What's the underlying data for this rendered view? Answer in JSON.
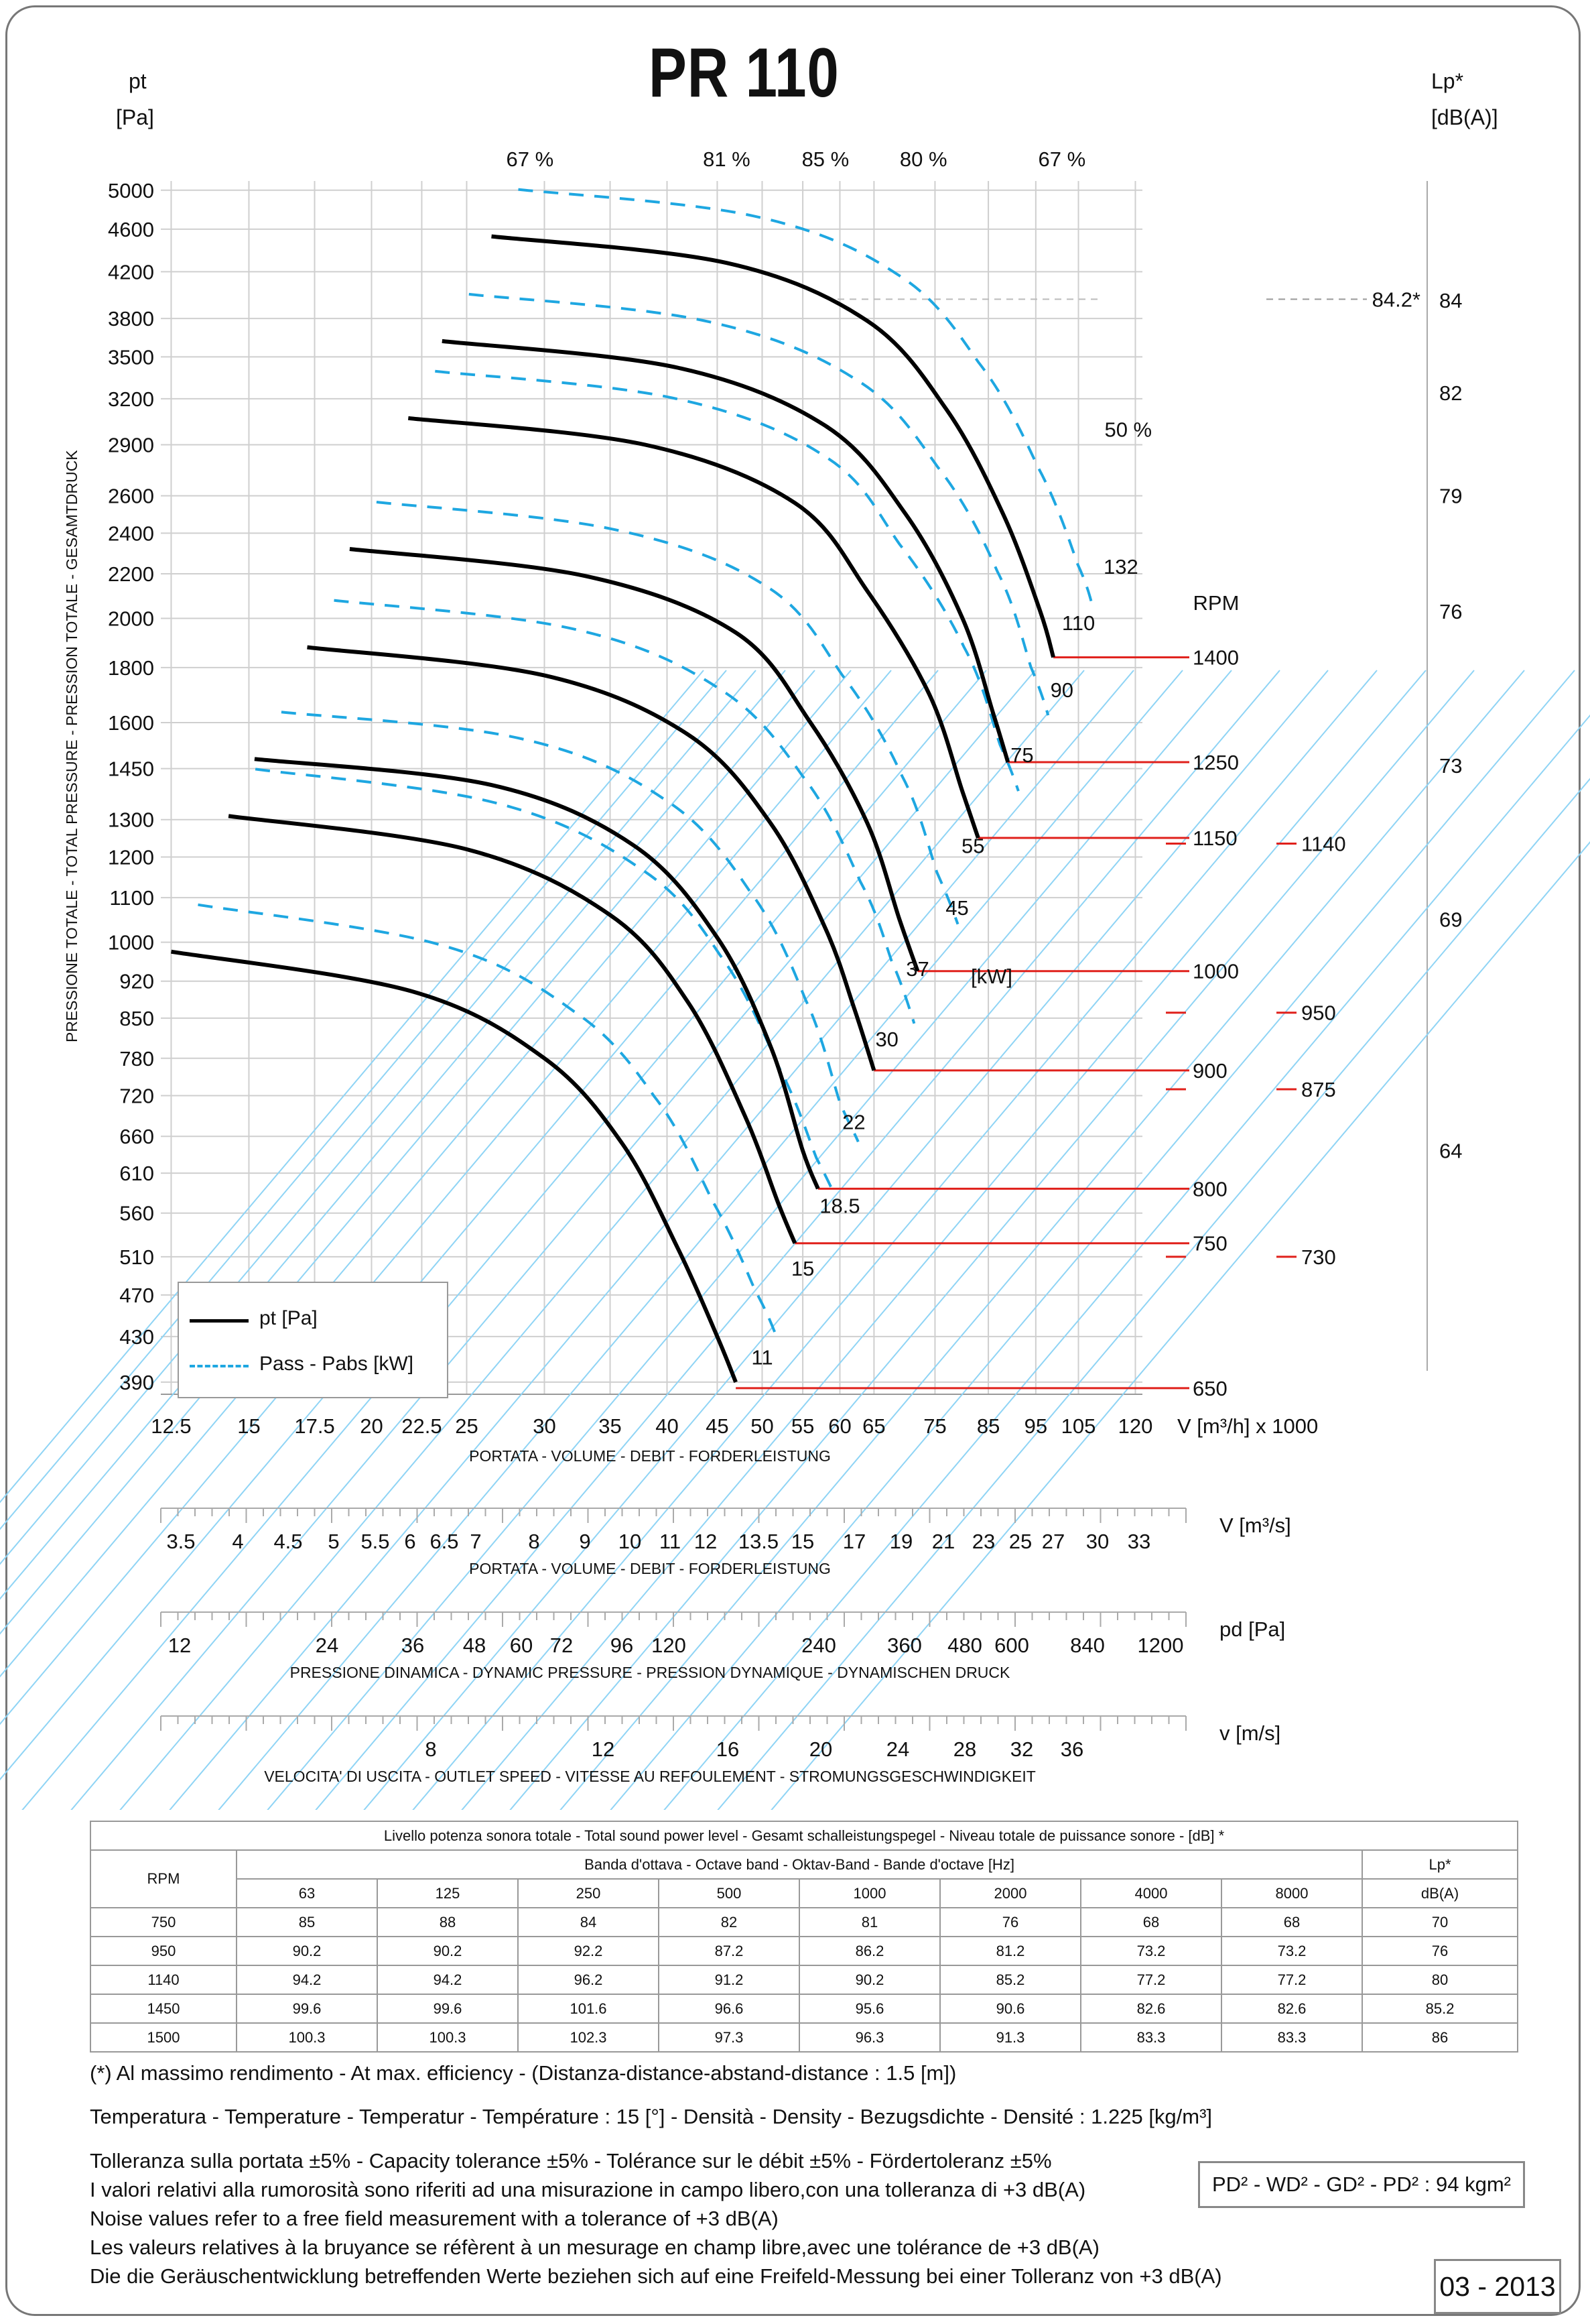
{
  "title": "PR 110",
  "y_left_unit": [
    "pt",
    "[Pa]"
  ],
  "y_right_unit": [
    "Lp*",
    "[dB(A)]"
  ],
  "y_axis_label": "PRESSIONE TOTALE - TOTAL PRESSURE - PRESSION TOTALE - GESAMTDRUCK",
  "chart_data": {
    "type": "line",
    "title": "PR 110",
    "x_scale": "log",
    "y_scale": "log",
    "xlabel": "V [m³/h] x 1000",
    "ylabel": "pt [Pa]",
    "xlim": [
      12.2,
      122
    ],
    "ylim": [
      380,
      5100
    ],
    "x_ticks": [
      "12.5",
      "15",
      "17.5",
      "20",
      "22.5",
      "25",
      "30",
      "35",
      "40",
      "45",
      "50",
      "55",
      "60",
      "65",
      "75",
      "85",
      "95",
      "105",
      "120"
    ],
    "y_ticks": [
      "390",
      "430",
      "470",
      "510",
      "560",
      "610",
      "660",
      "720",
      "780",
      "850",
      "920",
      "1000",
      "1100",
      "1200",
      "1300",
      "1450",
      "1600",
      "1800",
      "2000",
      "2200",
      "2400",
      "2600",
      "2900",
      "3200",
      "3500",
      "3800",
      "4200",
      "4600",
      "5000"
    ],
    "lp_ticks": [
      "84",
      "82",
      "79",
      "76",
      "73",
      "69",
      "64"
    ],
    "lp_tick_pt": [
      3950,
      3240,
      2600,
      2030,
      1460,
      1050,
      640
    ],
    "lp_marker": {
      "label": "84.2*",
      "pt": 3960
    },
    "legend": {
      "position": "bottom-left",
      "items": [
        "pt [Pa]",
        "Pass - Pabs [kW]"
      ]
    },
    "rpm_header": "RPM",
    "series": [
      {
        "rpm": "650",
        "values": [
          [
            12.5,
            980
          ],
          [
            22,
            900
          ],
          [
            30,
            780
          ],
          [
            36,
            650
          ],
          [
            41,
            520
          ],
          [
            45,
            430
          ],
          [
            47,
            390
          ]
        ]
      },
      {
        "rpm": "750",
        "values": [
          [
            14.3,
            1310
          ],
          [
            25,
            1220
          ],
          [
            35,
            1060
          ],
          [
            42,
            880
          ],
          [
            48,
            690
          ],
          [
            52,
            570
          ],
          [
            54,
            525
          ]
        ]
      },
      {
        "rpm": "800",
        "values": [
          [
            15.2,
            1480
          ],
          [
            26.5,
            1400
          ],
          [
            37,
            1230
          ],
          [
            45,
            1010
          ],
          [
            51,
            800
          ],
          [
            55,
            640
          ],
          [
            57,
            590
          ]
        ]
      },
      {
        "rpm": "900",
        "values": [
          [
            17.2,
            1880
          ],
          [
            30,
            1770
          ],
          [
            42,
            1560
          ],
          [
            51,
            1290
          ],
          [
            58,
            1030
          ],
          [
            62,
            870
          ],
          [
            65,
            760
          ]
        ]
      },
      {
        "rpm": "1000",
        "values": [
          [
            19,
            2320
          ],
          [
            33,
            2190
          ],
          [
            47,
            1940
          ],
          [
            56,
            1600
          ],
          [
            64,
            1290
          ],
          [
            69,
            1050
          ],
          [
            72,
            940
          ]
        ]
      },
      {
        "rpm": "1150",
        "values": [
          [
            21.8,
            3070
          ],
          [
            38,
            2900
          ],
          [
            54,
            2560
          ],
          [
            64,
            2120
          ],
          [
            74,
            1700
          ],
          [
            80,
            1380
          ],
          [
            83,
            1250
          ]
        ]
      },
      {
        "rpm": "1250",
        "values": [
          [
            23.6,
            3620
          ],
          [
            41,
            3420
          ],
          [
            58,
            3020
          ],
          [
            70,
            2500
          ],
          [
            80,
            2000
          ],
          [
            86,
            1630
          ],
          [
            89,
            1470
          ]
        ]
      },
      {
        "rpm": "1400",
        "values": [
          [
            26.5,
            4530
          ],
          [
            46,
            4280
          ],
          [
            64,
            3780
          ],
          [
            77,
            3130
          ],
          [
            88,
            2500
          ],
          [
            96,
            2030
          ],
          [
            99,
            1840
          ]
        ]
      }
    ],
    "rpm_labels": [
      {
        "label": "1400",
        "pt": 1840
      },
      {
        "label": "1250",
        "pt": 1470
      },
      {
        "label": "1150",
        "pt": 1250
      },
      {
        "label": "1000",
        "pt": 940
      },
      {
        "label": "900",
        "pt": 760
      },
      {
        "label": "800",
        "pt": 590
      },
      {
        "label": "750",
        "pt": 525
      },
      {
        "label": "650",
        "pt": 385
      }
    ],
    "rpm_labels_right": [
      {
        "label": "1140",
        "pt": 1235
      },
      {
        "label": "950",
        "pt": 860
      },
      {
        "label": "875",
        "pt": 730
      },
      {
        "label": "730",
        "pt": 510
      }
    ],
    "efficiency_labels": [
      {
        "label": "67 %",
        "x": 29
      },
      {
        "label": "81 %",
        "x": 46
      },
      {
        "label": "85 %",
        "x": 58
      },
      {
        "label": "80 %",
        "x": 73
      },
      {
        "label": "67 %",
        "x": 101
      },
      {
        "label": "50 %",
        "x": 118,
        "pt": 2950
      }
    ],
    "power_labels": [
      {
        "label": "132",
        "x": 116,
        "pt": 2200
      },
      {
        "label": "110",
        "x": 105,
        "pt": 1950
      },
      {
        "label": "90",
        "x": 101,
        "pt": 1690
      },
      {
        "label": "75",
        "x": 92,
        "pt": 1470
      },
      {
        "label": "55",
        "x": 82,
        "pt": 1210
      },
      {
        "label": "45",
        "x": 79,
        "pt": 1060
      },
      {
        "label": "37",
        "x": 72,
        "pt": 930
      },
      {
        "label": "30",
        "x": 67,
        "pt": 800
      },
      {
        "label": "22",
        "x": 62,
        "pt": 670
      },
      {
        "label": "18.5",
        "x": 60,
        "pt": 560
      },
      {
        "label": "15",
        "x": 55,
        "pt": 490
      },
      {
        "label": "11",
        "x": 50,
        "pt": 405
      }
    ],
    "power_unit_label": "[kW]"
  },
  "scales": {
    "volume_m3s": {
      "ticks": [
        "3.5",
        "4",
        "4.5",
        "5",
        "5.5",
        "6",
        "6.5",
        "7",
        "8",
        "9",
        "10",
        "11",
        "12",
        "13.5",
        "15",
        "17",
        "19",
        "21",
        "23",
        "25",
        "27",
        "30",
        "33"
      ],
      "unit": "V  [m³/s]",
      "caption": "PORTATA - VOLUME - DEBIT - FORDERLEISTUNG"
    },
    "dynamic_pressure": {
      "ticks": [
        "12",
        "24",
        "36",
        "48",
        "60",
        "72",
        "96",
        "120",
        "240",
        "360",
        "480",
        "600",
        "840",
        "1200"
      ],
      "unit": "pd  [Pa]",
      "caption": "PRESSIONE DINAMICA - DYNAMIC PRESSURE - PRESSION DYNAMIQUE - DYNAMISCHEN DRUCK"
    },
    "outlet_speed": {
      "ticks": [
        "8",
        "12",
        "16",
        "20",
        "24",
        "28",
        "32",
        "36"
      ],
      "unit": "v  [m/s]",
      "caption": "VELOCITA' DI USCITA - OUTLET SPEED - VITESSE AU REFOULEMENT - STROMUNGSGESCHWINDIGKEIT"
    },
    "main_x_caption": "PORTATA - VOLUME - DEBIT - FORDERLEISTUNG"
  },
  "sound_table": {
    "title": "Livello potenza sonora totale - Total sound power level - Gesamt schalleistungspegel - Niveau totale de puissance sonore - [dB]   *",
    "band_title": "Banda d'ottava - Octave band - Oktav-Band - Bande d'octave [Hz]",
    "rpm_header": "RPM",
    "lp_header": "Lp*",
    "lp_unit": "dB(A)",
    "bands": [
      "63",
      "125",
      "250",
      "500",
      "1000",
      "2000",
      "4000",
      "8000"
    ],
    "rows": [
      [
        "750",
        "85",
        "88",
        "84",
        "82",
        "81",
        "76",
        "68",
        "68",
        "70"
      ],
      [
        "950",
        "90.2",
        "90.2",
        "92.2",
        "87.2",
        "86.2",
        "81.2",
        "73.2",
        "73.2",
        "76"
      ],
      [
        "1140",
        "94.2",
        "94.2",
        "96.2",
        "91.2",
        "90.2",
        "85.2",
        "77.2",
        "77.2",
        "80"
      ],
      [
        "1450",
        "99.6",
        "99.6",
        "101.6",
        "96.6",
        "95.6",
        "90.6",
        "82.6",
        "82.6",
        "85.2"
      ],
      [
        "1500",
        "100.3",
        "100.3",
        "102.3",
        "97.3",
        "96.3",
        "91.3",
        "83.3",
        "83.3",
        "86"
      ]
    ]
  },
  "notes": {
    "efficiency": "(*) Al massimo rendimento - At max. efficiency - (Distanza-distance-abstand-distance : 1.5 [m])",
    "temperature": "Temperatura - Temperature - Temperatur - Température : 15 [°]  -  Densità - Density - Bezugsdichte - Densité : 1.225 [kg/m³]",
    "tolerance": [
      "Tolleranza sulla portata  ±5% - Capacity tolerance ±5% - Tolérance sur le débit ±5% - Fördertoleranz ±5%",
      "I valori relativi alla rumorosità sono riferiti ad una misurazione in campo libero,con una tolleranza di +3 dB(A)",
      "Noise values refer to a free field measurement with a tolerance of +3 dB(A)",
      "Les valeurs relatives à la bruyance se réfèrent à un mesurage en champ libre,avec une tolérance de +3 dB(A)",
      "Die die Geräuschentwicklung betreffenden Werte beziehen sich auf eine Freifeld-Messung bei einer Tolleranz von +3 dB(A)"
    ]
  },
  "pd2": "PD² -  WD² - GD² -  PD²  :  94 kgm²",
  "date": "03 - 2013",
  "colors": {
    "curve": "#000000",
    "power": "#1ea7e1",
    "efficiency": "#8fd4f5",
    "grid": "#cfcfcf",
    "rpm_line": "#e0201b"
  }
}
